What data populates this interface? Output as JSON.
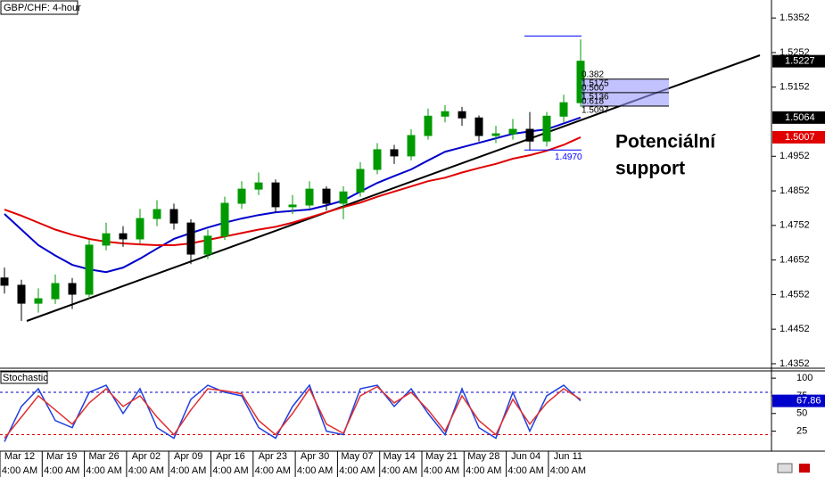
{
  "chart_data": {
    "type": "candlestick",
    "title": "GBP/CHF: 4-hour",
    "up_color": "#009a00",
    "down_color": "#000000",
    "ylim": [
      1.4339,
      1.5404
    ],
    "yticks": [
      1.5352,
      1.5252,
      1.5152,
      1.4952,
      1.4852,
      1.4752,
      1.4652,
      1.4552,
      1.4452,
      1.4352
    ],
    "x_labels": [
      {
        "date": "Mar 12",
        "time": "4:00 AM"
      },
      {
        "date": "Mar 19",
        "time": "4:00 AM"
      },
      {
        "date": "Mar 26",
        "time": "4:00 AM"
      },
      {
        "date": "Apr 02",
        "time": "4:00 AM"
      },
      {
        "date": "Apr 09",
        "time": "4:00 AM"
      },
      {
        "date": "Apr 16",
        "time": "4:00 AM"
      },
      {
        "date": "Apr 23",
        "time": "4:00 AM"
      },
      {
        "date": "Apr 30",
        "time": "4:00 AM"
      },
      {
        "date": "May 07",
        "time": "4:00 AM"
      },
      {
        "date": "May 14",
        "time": "4:00 AM"
      },
      {
        "date": "May 21",
        "time": "4:00 AM"
      },
      {
        "date": "May 28",
        "time": "4:00 AM"
      },
      {
        "date": "Jun 04",
        "time": "4:00 AM"
      },
      {
        "date": "Jun 11",
        "time": "4:00 AM"
      }
    ],
    "ohlc": [
      [
        1.46,
        1.463,
        1.4555,
        1.4579
      ],
      [
        1.4579,
        1.4595,
        1.4476,
        1.4527
      ],
      [
        1.4527,
        1.457,
        1.45,
        1.454
      ],
      [
        1.454,
        1.461,
        1.4525,
        1.4584
      ],
      [
        1.4584,
        1.46,
        1.451,
        1.4553
      ],
      [
        1.4553,
        1.471,
        1.454,
        1.4695
      ],
      [
        1.4695,
        1.476,
        1.468,
        1.4728
      ],
      [
        1.4728,
        1.475,
        1.469,
        1.4713
      ],
      [
        1.4713,
        1.48,
        1.47,
        1.4772
      ],
      [
        1.4772,
        1.4825,
        1.475,
        1.4798
      ],
      [
        1.4798,
        1.4815,
        1.474,
        1.4759
      ],
      [
        1.4759,
        1.477,
        1.464,
        1.4669
      ],
      [
        1.4669,
        1.474,
        1.4655,
        1.4721
      ],
      [
        1.4721,
        1.4835,
        1.471,
        1.4816
      ],
      [
        1.4816,
        1.488,
        1.48,
        1.4857
      ],
      [
        1.4857,
        1.4905,
        1.484,
        1.4875
      ],
      [
        1.4875,
        1.4885,
        1.479,
        1.4806
      ],
      [
        1.4806,
        1.484,
        1.4785,
        1.4811
      ],
      [
        1.4811,
        1.488,
        1.48,
        1.4857
      ],
      [
        1.4857,
        1.4865,
        1.4795,
        1.4816
      ],
      [
        1.4816,
        1.4865,
        1.477,
        1.4849
      ],
      [
        1.4849,
        1.4935,
        1.4835,
        1.4914
      ],
      [
        1.4914,
        1.499,
        1.49,
        1.4971
      ],
      [
        1.4971,
        1.4985,
        1.493,
        1.4953
      ],
      [
        1.4953,
        1.503,
        1.494,
        1.5012
      ],
      [
        1.5012,
        1.509,
        1.5,
        1.5068
      ],
      [
        1.5068,
        1.51,
        1.505,
        1.5081
      ],
      [
        1.5081,
        1.5095,
        1.504,
        1.5063
      ],
      [
        1.5063,
        1.507,
        1.4995,
        1.5012
      ],
      [
        1.5012,
        1.504,
        1.499,
        1.5017
      ],
      [
        1.5017,
        1.506,
        1.5,
        1.503
      ],
      [
        1.503,
        1.508,
        1.497,
        1.4996
      ],
      [
        1.4996,
        1.508,
        1.498,
        1.5068
      ],
      [
        1.5068,
        1.513,
        1.505,
        1.5107
      ],
      [
        1.5107,
        1.529,
        1.5095,
        1.5227
      ]
    ],
    "moving_averages": [
      {
        "color": "#0000cc",
        "values": [
          1.4785,
          1.474,
          1.4695,
          1.4665,
          1.4638,
          1.4625,
          1.4617,
          1.463,
          1.4656,
          1.4685,
          1.4713,
          1.473,
          1.4746,
          1.476,
          1.4772,
          1.4782,
          1.479,
          1.4794,
          1.4798,
          1.481,
          1.4824,
          1.485,
          1.4875,
          1.4895,
          1.4914,
          1.494,
          1.4965,
          1.4978,
          1.4991,
          1.5004,
          1.5017,
          1.5024,
          1.503,
          1.5047,
          1.5064
        ]
      },
      {
        "color": "#e00000",
        "values": [
          1.4798,
          1.478,
          1.476,
          1.474,
          1.4725,
          1.4713,
          1.4705,
          1.47,
          1.4697,
          1.4695,
          1.4695,
          1.47,
          1.471,
          1.472,
          1.473,
          1.474,
          1.4748,
          1.476,
          1.4775,
          1.479,
          1.4805,
          1.4818,
          1.4835,
          1.485,
          1.4865,
          1.488,
          1.489,
          1.4905,
          1.4918,
          1.493,
          1.4945,
          1.4955,
          1.4968,
          1.4985,
          1.5007
        ]
      }
    ],
    "price_labels": [
      {
        "value": 1.5227,
        "color": "#000000"
      },
      {
        "value": 1.5064,
        "color": "#000000"
      },
      {
        "value": 1.5007,
        "color": "#e00000"
      }
    ],
    "fibonacci": {
      "high": 1.53,
      "low": {
        "value": 1.497,
        "label": "1.4970"
      },
      "levels": [
        {
          "ratio": "0.382",
          "price": 1.5175
        },
        {
          "ratio": "0.500",
          "price": 1.5136
        },
        {
          "ratio": "0.618",
          "price": 1.5097
        }
      ],
      "color": "#0000ff"
    },
    "annotation_lines": [
      "Potenciální",
      "support"
    ],
    "stochastic": {
      "title": "Stochastic",
      "ylim": [
        -2,
        109
      ],
      "yticks": [
        100,
        75,
        50,
        25
      ],
      "levels": [
        {
          "value": 80,
          "color": "#0000cc"
        },
        {
          "value": 20,
          "color": "#e00000"
        }
      ],
      "last_label": 67.86,
      "series": [
        {
          "color": "#2040e0",
          "values": [
            10,
            60,
            85,
            40,
            30,
            80,
            90,
            50,
            85,
            30,
            15,
            70,
            90,
            80,
            75,
            30,
            15,
            60,
            90,
            25,
            20,
            85,
            90,
            60,
            85,
            50,
            20,
            85,
            30,
            15,
            80,
            25,
            75,
            90,
            67.86
          ]
        },
        {
          "color": "#e03030",
          "values": [
            15,
            45,
            75,
            55,
            35,
            65,
            85,
            60,
            75,
            45,
            20,
            55,
            85,
            82,
            78,
            40,
            20,
            50,
            85,
            35,
            22,
            75,
            88,
            65,
            80,
            55,
            25,
            75,
            40,
            20,
            70,
            35,
            65,
            85,
            70
          ]
        }
      ]
    }
  }
}
